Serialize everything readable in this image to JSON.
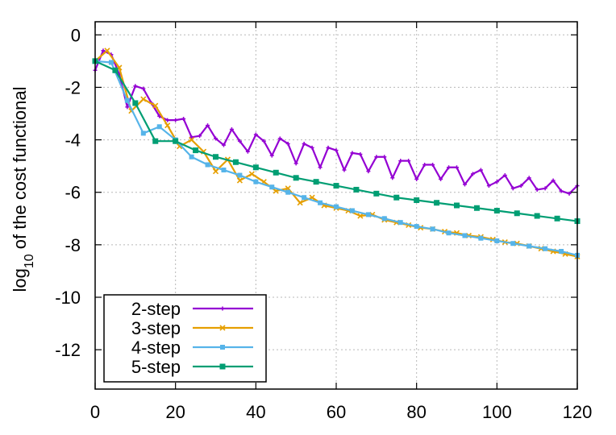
{
  "chart_data": {
    "type": "line",
    "xlabel": "",
    "ylabel": {
      "prefix": "log",
      "subscript": "10",
      "suffix": " of the cost functional"
    },
    "xlim": [
      0,
      120
    ],
    "ylim": [
      -13.5,
      0.5
    ],
    "xticks": [
      0,
      20,
      40,
      60,
      80,
      100,
      120
    ],
    "yticks": [
      0,
      -2,
      -4,
      -6,
      -8,
      -10,
      -12
    ],
    "grid": true,
    "legend_position": "bottom-left",
    "series": [
      {
        "name": "2-step",
        "color": "#9400d3",
        "marker": "plus",
        "x": [
          0,
          2,
          4,
          6,
          8,
          10,
          12,
          14,
          16,
          18,
          20,
          22,
          24,
          26,
          28,
          30,
          32,
          34,
          36,
          38,
          40,
          42,
          44,
          46,
          48,
          50,
          52,
          54,
          56,
          58,
          60,
          62,
          64,
          66,
          68,
          70,
          72,
          74,
          76,
          78,
          80,
          82,
          84,
          86,
          88,
          90,
          92,
          94,
          96,
          98,
          100,
          102,
          104,
          106,
          108,
          110,
          112,
          114,
          116,
          118,
          120
        ],
        "y": [
          -1.35,
          -0.6,
          -0.75,
          -1.5,
          -2.75,
          -1.95,
          -2.05,
          -2.6,
          -3.1,
          -3.25,
          -3.25,
          -3.2,
          -3.9,
          -3.85,
          -3.45,
          -3.95,
          -4.2,
          -3.6,
          -4.05,
          -4.45,
          -3.8,
          -4.05,
          -4.6,
          -3.95,
          -4.15,
          -4.9,
          -4.15,
          -4.3,
          -5.05,
          -4.3,
          -4.4,
          -5.15,
          -4.5,
          -4.55,
          -5.2,
          -4.65,
          -4.65,
          -5.45,
          -4.8,
          -4.8,
          -5.5,
          -4.95,
          -4.95,
          -5.5,
          -5.05,
          -5.05,
          -5.7,
          -5.3,
          -5.15,
          -5.75,
          -5.6,
          -5.35,
          -5.85,
          -5.75,
          -5.45,
          -5.9,
          -5.85,
          -5.55,
          -5.95,
          -6.05,
          -5.75
        ]
      },
      {
        "name": "3-step",
        "color": "#e69f00",
        "marker": "cross",
        "x": [
          0,
          3,
          6,
          9,
          12,
          15,
          18,
          21,
          24,
          27,
          30,
          33,
          36,
          39,
          42,
          45,
          48,
          51,
          54,
          57,
          60,
          63,
          66,
          69,
          72,
          75,
          78,
          81,
          84,
          87,
          90,
          93,
          96,
          99,
          102,
          105,
          108,
          111,
          114,
          117,
          120
        ],
        "y": [
          -1.0,
          -0.6,
          -1.25,
          -2.9,
          -2.45,
          -2.7,
          -3.45,
          -4.25,
          -4.0,
          -4.45,
          -5.2,
          -4.75,
          -5.55,
          -5.3,
          -5.6,
          -5.95,
          -5.85,
          -6.4,
          -6.2,
          -6.5,
          -6.6,
          -6.7,
          -6.9,
          -6.85,
          -7.05,
          -7.15,
          -7.25,
          -7.35,
          -7.4,
          -7.5,
          -7.55,
          -7.65,
          -7.7,
          -7.8,
          -7.9,
          -7.95,
          -8.05,
          -8.15,
          -8.25,
          -8.35,
          -8.45
        ]
      },
      {
        "name": "4-step",
        "color": "#56b4e9",
        "marker": "square-small",
        "x": [
          0,
          4,
          8,
          12,
          16,
          20,
          24,
          28,
          32,
          36,
          40,
          44,
          48,
          52,
          56,
          60,
          64,
          68,
          72,
          76,
          80,
          84,
          88,
          92,
          96,
          100,
          104,
          108,
          112,
          116,
          120
        ],
        "y": [
          -1.0,
          -1.05,
          -2.5,
          -3.75,
          -3.5,
          -4.0,
          -4.65,
          -4.95,
          -5.15,
          -5.35,
          -5.6,
          -5.8,
          -6.0,
          -6.2,
          -6.4,
          -6.55,
          -6.7,
          -6.85,
          -7.0,
          -7.15,
          -7.3,
          -7.4,
          -7.55,
          -7.65,
          -7.75,
          -7.85,
          -7.95,
          -8.05,
          -8.15,
          -8.25,
          -8.4
        ]
      },
      {
        "name": "5-step",
        "color": "#009e73",
        "marker": "square",
        "x": [
          0,
          5,
          10,
          15,
          20,
          25,
          30,
          35,
          40,
          45,
          50,
          55,
          60,
          65,
          70,
          75,
          80,
          85,
          90,
          95,
          100,
          105,
          110,
          115,
          120
        ],
        "y": [
          -1.0,
          -1.35,
          -2.6,
          -4.05,
          -4.05,
          -4.4,
          -4.65,
          -4.85,
          -5.05,
          -5.25,
          -5.45,
          -5.6,
          -5.75,
          -5.9,
          -6.05,
          -6.2,
          -6.3,
          -6.4,
          -6.5,
          -6.6,
          -6.7,
          -6.8,
          -6.9,
          -7.0,
          -7.1
        ]
      }
    ]
  }
}
